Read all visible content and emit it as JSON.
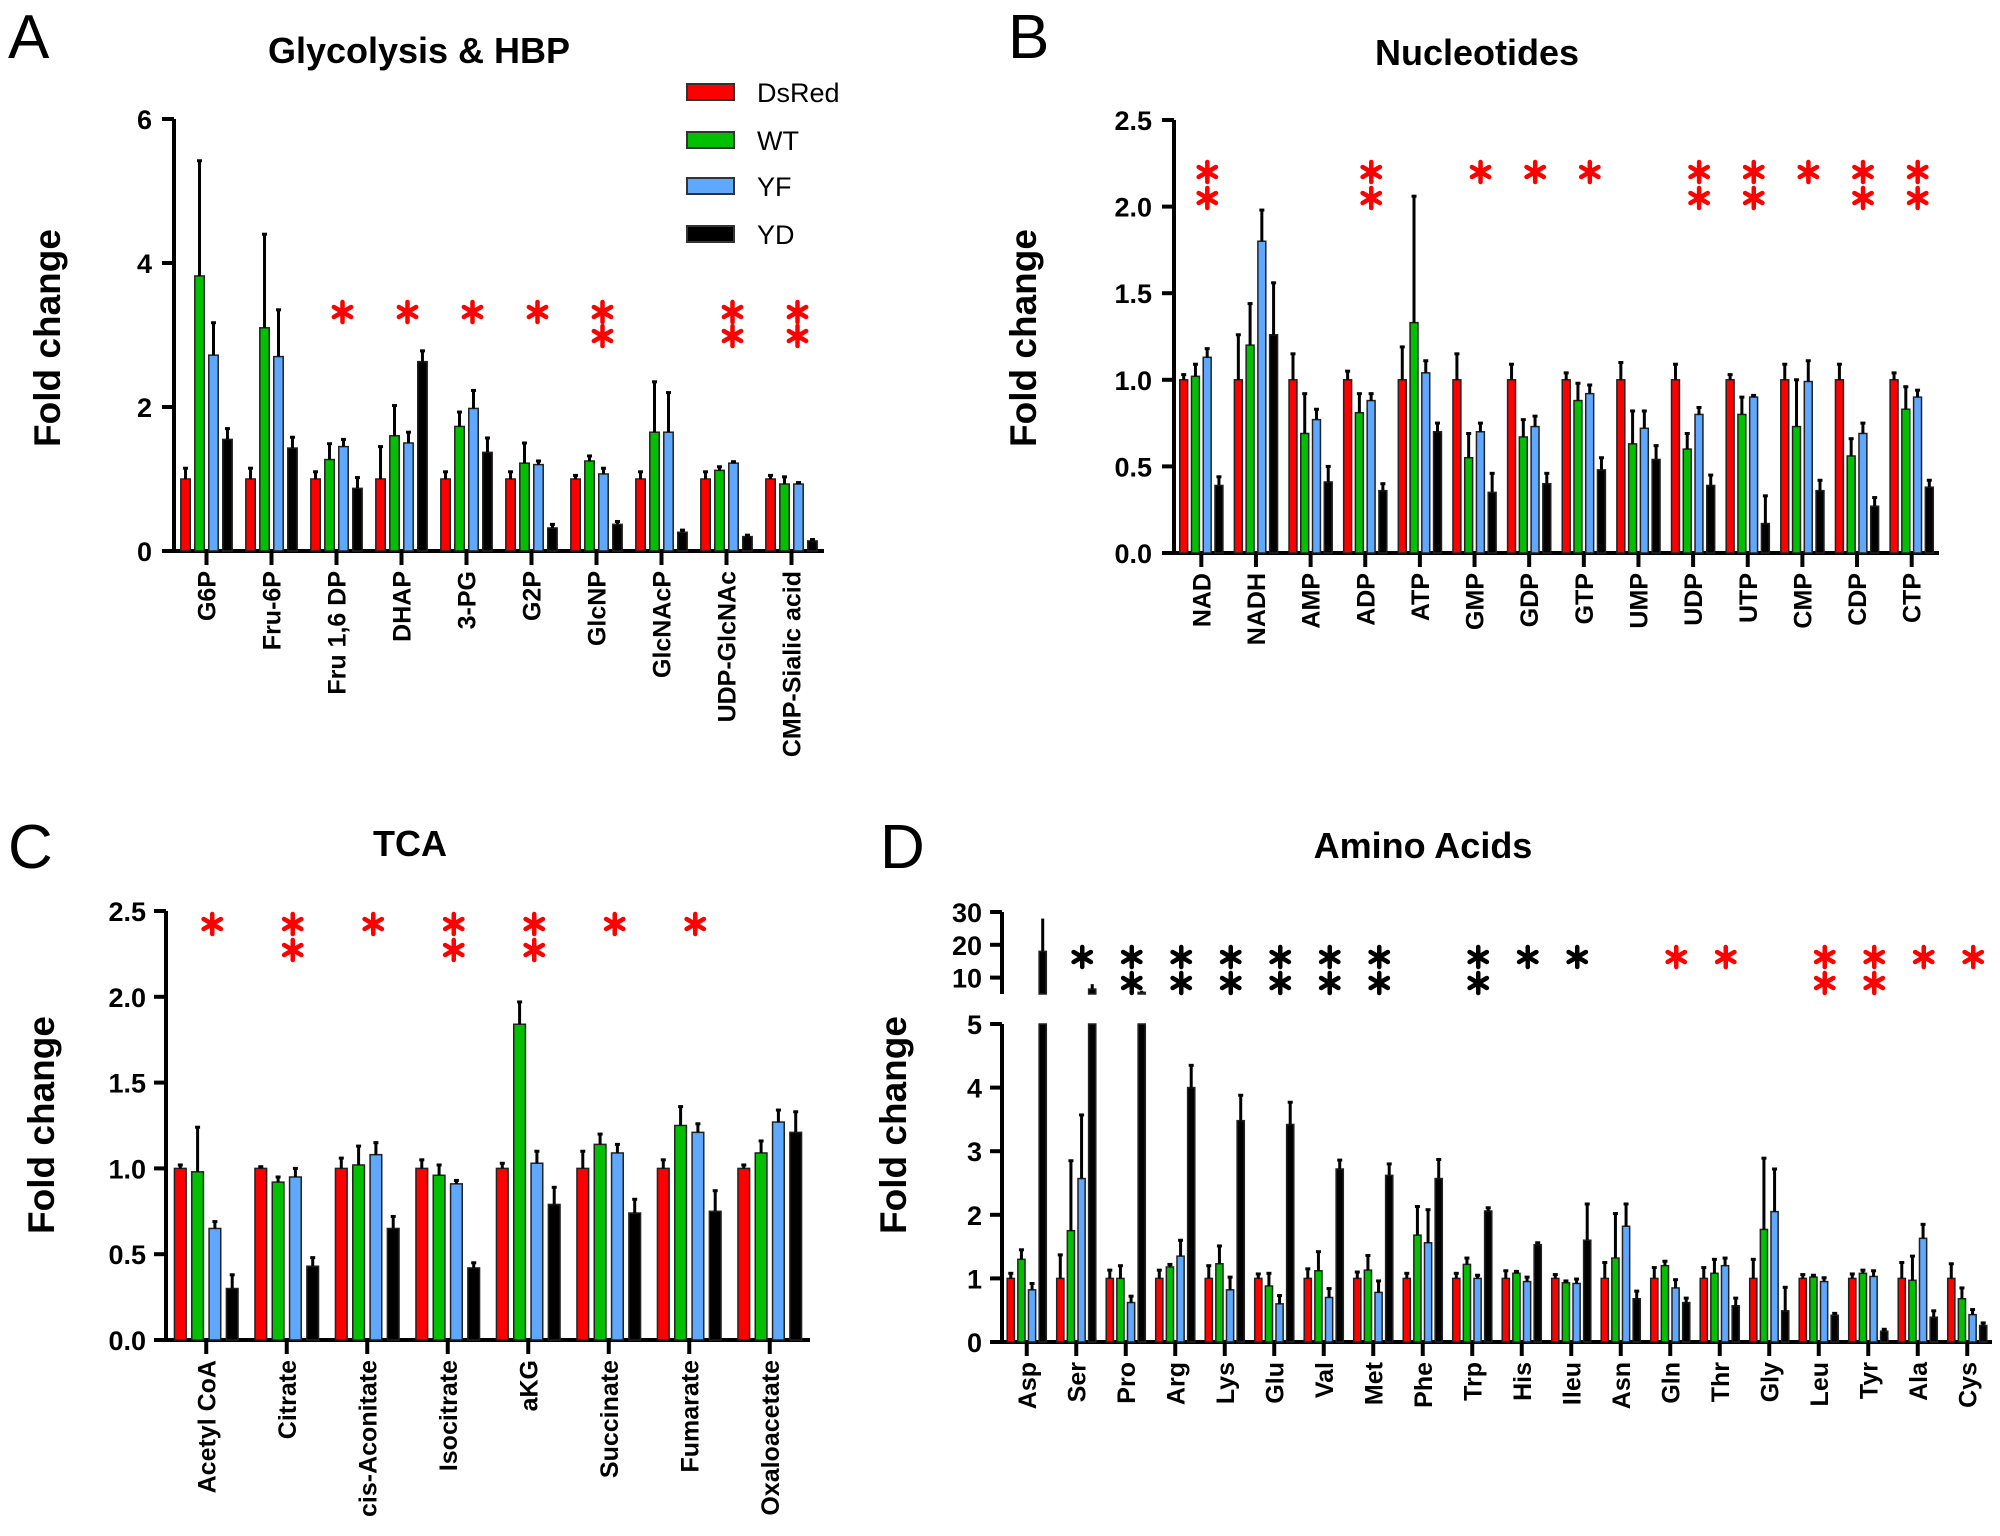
{
  "legend": {
    "series": [
      {
        "name": "DsRed",
        "color": "#ff0000"
      },
      {
        "name": "WT",
        "color": "#00c000"
      },
      {
        "name": "YF",
        "color": "#5fa8ff"
      },
      {
        "name": "YD",
        "color": "#000000"
      }
    ]
  },
  "chart_data": [
    {
      "panel": "A",
      "type": "bar",
      "title": "Glycolysis & HBP",
      "ylabel": "Fold change",
      "ylim": [
        0,
        6
      ],
      "yticks": [
        0,
        2,
        4,
        6
      ],
      "categories": [
        "G6P",
        "Fru-6P",
        "Fru 1,6 DP",
        "DHAP",
        "3-PG",
        "G2P",
        "GlcNP",
        "GlcNAcP",
        "UDP-GlcNAc",
        "CMP-Sialic acid"
      ],
      "series": [
        {
          "name": "DsRed",
          "values": [
            1.0,
            1.0,
            1.0,
            1.0,
            1.0,
            1.0,
            1.0,
            1.0,
            1.0,
            1.0
          ],
          "errors": [
            0.15,
            0.15,
            0.1,
            0.45,
            0.1,
            0.1,
            0.05,
            0.1,
            0.1,
            0.05
          ]
        },
        {
          "name": "WT",
          "values": [
            3.82,
            3.1,
            1.27,
            1.6,
            1.73,
            1.22,
            1.25,
            1.65,
            1.12,
            0.93
          ],
          "errors": [
            1.6,
            1.3,
            0.22,
            0.42,
            0.2,
            0.28,
            0.07,
            0.7,
            0.05,
            0.1
          ]
        },
        {
          "name": "YF",
          "values": [
            2.72,
            2.7,
            1.45,
            1.5,
            1.98,
            1.2,
            1.07,
            1.65,
            1.22,
            0.93
          ],
          "errors": [
            0.45,
            0.65,
            0.1,
            0.15,
            0.25,
            0.05,
            0.08,
            0.55,
            0.02,
            0.02
          ]
        },
        {
          "name": "YD",
          "values": [
            1.55,
            1.43,
            0.87,
            2.63,
            1.37,
            0.32,
            0.37,
            0.26,
            0.2,
            0.14
          ],
          "errors": [
            0.15,
            0.15,
            0.15,
            0.15,
            0.2,
            0.05,
            0.04,
            0.03,
            0.02,
            0.02
          ]
        }
      ],
      "significance": [
        {
          "category": "Fru 1,6 DP",
          "count": 1,
          "color": "#ff0000"
        },
        {
          "category": "DHAP",
          "count": 1,
          "color": "#ff0000"
        },
        {
          "category": "3-PG",
          "count": 1,
          "color": "#ff0000"
        },
        {
          "category": "G2P",
          "count": 1,
          "color": "#ff0000"
        },
        {
          "category": "GlcNP",
          "count": 2,
          "color": "#ff0000"
        },
        {
          "category": "UDP-GlcNAc",
          "count": 2,
          "color": "#ff0000"
        },
        {
          "category": "CMP-Sialic acid",
          "count": 2,
          "color": "#ff0000"
        }
      ],
      "legend_position": "top-right",
      "grid": false
    },
    {
      "panel": "B",
      "type": "bar",
      "title": "Nucleotides",
      "ylabel": "Fold change",
      "ylim": [
        0,
        2.5
      ],
      "yticks": [
        "0.0",
        "0.5",
        "1.0",
        "1.5",
        "2.0",
        "2.5"
      ],
      "categories": [
        "NAD",
        "NADH",
        "AMP",
        "ADP",
        "ATP",
        "GMP",
        "GDP",
        "GTP",
        "UMP",
        "UDP",
        "UTP",
        "CMP",
        "CDP",
        "CTP"
      ],
      "series": [
        {
          "name": "DsRed",
          "values": [
            1.0,
            1.0,
            1.0,
            1.0,
            1.0,
            1.0,
            1.0,
            1.0,
            1.0,
            1.0,
            1.0,
            1.0,
            1.0,
            1.0
          ],
          "errors": [
            0.03,
            0.26,
            0.15,
            0.05,
            0.19,
            0.15,
            0.09,
            0.04,
            0.1,
            0.09,
            0.03,
            0.09,
            0.09,
            0.04
          ]
        },
        {
          "name": "WT",
          "values": [
            1.02,
            1.2,
            0.69,
            0.81,
            1.33,
            0.55,
            0.67,
            0.88,
            0.63,
            0.6,
            0.8,
            0.73,
            0.56,
            0.83
          ],
          "errors": [
            0.07,
            0.24,
            0.23,
            0.11,
            0.73,
            0.14,
            0.1,
            0.1,
            0.19,
            0.09,
            0.1,
            0.27,
            0.1,
            0.13
          ]
        },
        {
          "name": "YF",
          "values": [
            1.13,
            1.8,
            0.77,
            0.88,
            1.04,
            0.7,
            0.73,
            0.92,
            0.72,
            0.8,
            0.9,
            0.99,
            0.69,
            0.9
          ],
          "errors": [
            0.05,
            0.18,
            0.06,
            0.04,
            0.07,
            0.05,
            0.06,
            0.05,
            0.1,
            0.04,
            0.01,
            0.12,
            0.06,
            0.04
          ]
        },
        {
          "name": "YD",
          "values": [
            0.39,
            1.26,
            0.41,
            0.36,
            0.7,
            0.35,
            0.4,
            0.48,
            0.54,
            0.39,
            0.17,
            0.36,
            0.27,
            0.38
          ],
          "errors": [
            0.05,
            0.3,
            0.09,
            0.04,
            0.05,
            0.11,
            0.06,
            0.07,
            0.08,
            0.06,
            0.16,
            0.06,
            0.05,
            0.04
          ]
        }
      ],
      "significance": [
        {
          "category": "NAD",
          "count": 2,
          "color": "#ff0000"
        },
        {
          "category": "ADP",
          "count": 2,
          "color": "#ff0000"
        },
        {
          "category": "GMP",
          "count": 1,
          "color": "#ff0000"
        },
        {
          "category": "GDP",
          "count": 1,
          "color": "#ff0000"
        },
        {
          "category": "GTP",
          "count": 1,
          "color": "#ff0000"
        },
        {
          "category": "UDP",
          "count": 2,
          "color": "#ff0000"
        },
        {
          "category": "UTP",
          "count": 2,
          "color": "#ff0000"
        },
        {
          "category": "CMP",
          "count": 1,
          "color": "#ff0000"
        },
        {
          "category": "CDP",
          "count": 2,
          "color": "#ff0000"
        },
        {
          "category": "CTP",
          "count": 2,
          "color": "#ff0000"
        }
      ],
      "grid": false
    },
    {
      "panel": "C",
      "type": "bar",
      "title": "TCA",
      "ylabel": "Fold change",
      "ylim": [
        0,
        2.5
      ],
      "yticks": [
        "0.0",
        "0.5",
        "1.0",
        "1.5",
        "2.0",
        "2.5"
      ],
      "categories": [
        "Acetyl CoA",
        "Citrate",
        "cis-Aconitate",
        "Isocitrate",
        "aKG",
        "Succinate",
        "Fumarate",
        "Oxaloacetate"
      ],
      "series": [
        {
          "name": "DsRed",
          "values": [
            1.0,
            1.0,
            1.0,
            1.0,
            1.0,
            1.0,
            1.0,
            1.0
          ],
          "errors": [
            0.02,
            0.01,
            0.06,
            0.05,
            0.03,
            0.1,
            0.05,
            0.02
          ]
        },
        {
          "name": "WT",
          "values": [
            0.98,
            0.92,
            1.02,
            0.96,
            1.84,
            1.14,
            1.25,
            1.09
          ],
          "errors": [
            0.26,
            0.03,
            0.11,
            0.06,
            0.13,
            0.06,
            0.11,
            0.07
          ]
        },
        {
          "name": "YF",
          "values": [
            0.65,
            0.95,
            1.08,
            0.91,
            1.03,
            1.09,
            1.21,
            1.27
          ],
          "errors": [
            0.04,
            0.05,
            0.07,
            0.02,
            0.07,
            0.05,
            0.05,
            0.07
          ]
        },
        {
          "name": "YD",
          "values": [
            0.3,
            0.43,
            0.65,
            0.42,
            0.79,
            0.74,
            0.75,
            1.21
          ],
          "errors": [
            0.08,
            0.05,
            0.07,
            0.03,
            0.1,
            0.08,
            0.12,
            0.12
          ]
        }
      ],
      "significance": [
        {
          "category": "Acetyl CoA",
          "count": 1,
          "color": "#ff0000"
        },
        {
          "category": "Citrate",
          "count": 2,
          "color": "#ff0000"
        },
        {
          "category": "cis-Aconitate",
          "count": 1,
          "color": "#ff0000"
        },
        {
          "category": "Isocitrate",
          "count": 2,
          "color": "#ff0000"
        },
        {
          "category": "aKG",
          "count": 2,
          "color": "#ff0000"
        },
        {
          "category": "Succinate",
          "count": 1,
          "color": "#ff0000"
        },
        {
          "category": "Fumarate",
          "count": 1,
          "color": "#ff0000"
        }
      ],
      "grid": false
    },
    {
      "panel": "D",
      "type": "bar",
      "title": "Amino Acids",
      "ylabel": "Fold change",
      "ylim": [
        0,
        30
      ],
      "axis_break": [
        5,
        5
      ],
      "yticks": [
        0,
        1,
        2,
        3,
        4,
        5,
        10,
        20,
        30
      ],
      "categories": [
        "Asp",
        "Ser",
        "Pro",
        "Arg",
        "Lys",
        "Glu",
        "Val",
        "Met",
        "Phe",
        "Trp",
        "His",
        "Ileu",
        "Asn",
        "Gln",
        "Thr",
        "Gly",
        "Leu",
        "Tyr",
        "Ala",
        "Cys"
      ],
      "series": [
        {
          "name": "DsRed",
          "values": [
            1.0,
            1.0,
            1.0,
            1.0,
            1.0,
            1.0,
            1.0,
            1.0,
            1.0,
            1.0,
            1.0,
            1.0,
            1.0,
            1.0,
            1.0,
            1.0,
            1.0,
            1.0,
            1.0,
            1.0
          ],
          "errors": [
            0.08,
            0.37,
            0.13,
            0.13,
            0.2,
            0.07,
            0.15,
            0.1,
            0.08,
            0.08,
            0.12,
            0.06,
            0.25,
            0.17,
            0.17,
            0.3,
            0.06,
            0.07,
            0.25,
            0.23
          ]
        },
        {
          "name": "WT",
          "values": [
            1.3,
            1.75,
            1.0,
            1.18,
            1.23,
            0.88,
            1.12,
            1.13,
            1.68,
            1.22,
            1.08,
            0.93,
            1.32,
            1.2,
            1.08,
            1.77,
            1.02,
            1.08,
            0.97,
            0.68
          ],
          "errors": [
            0.15,
            1.1,
            0.2,
            0.04,
            0.28,
            0.2,
            0.3,
            0.23,
            0.45,
            0.1,
            0.03,
            0.03,
            0.7,
            0.07,
            0.22,
            1.12,
            0.03,
            0.05,
            0.38,
            0.17
          ]
        },
        {
          "name": "YF",
          "values": [
            0.82,
            2.57,
            0.62,
            1.35,
            0.82,
            0.6,
            0.7,
            0.78,
            1.56,
            1.0,
            0.95,
            0.92,
            1.82,
            0.85,
            1.2,
            2.05,
            0.95,
            1.03,
            1.63,
            0.43
          ],
          "errors": [
            0.1,
            1.0,
            0.1,
            0.25,
            0.2,
            0.13,
            0.14,
            0.18,
            0.52,
            0.05,
            0.07,
            0.07,
            0.35,
            0.13,
            0.12,
            0.67,
            0.06,
            0.09,
            0.22,
            0.08
          ]
        },
        {
          "name": "YD",
          "values": [
            18,
            6.5,
            5.5,
            4.0,
            3.48,
            3.42,
            2.72,
            2.62,
            2.57,
            2.06,
            1.53,
            1.6,
            0.68,
            0.62,
            0.57,
            0.49,
            0.42,
            0.17,
            0.39,
            0.26
          ],
          "errors": [
            10,
            1.5,
            0.5,
            0.35,
            0.4,
            0.35,
            0.14,
            0.18,
            0.3,
            0.05,
            0.03,
            0.57,
            0.12,
            0.07,
            0.12,
            0.37,
            0.03,
            0.03,
            0.1,
            0.04
          ]
        }
      ],
      "significance": [
        {
          "category": "Ser",
          "count": 1,
          "color": "#000000"
        },
        {
          "category": "Pro",
          "count": 2,
          "color": "#000000"
        },
        {
          "category": "Arg",
          "count": 2,
          "color": "#000000"
        },
        {
          "category": "Lys",
          "count": 2,
          "color": "#000000"
        },
        {
          "category": "Glu",
          "count": 2,
          "color": "#000000"
        },
        {
          "category": "Val",
          "count": 2,
          "color": "#000000"
        },
        {
          "category": "Met",
          "count": 2,
          "color": "#000000"
        },
        {
          "category": "Trp",
          "count": 2,
          "color": "#000000"
        },
        {
          "category": "His",
          "count": 1,
          "color": "#000000"
        },
        {
          "category": "Ileu",
          "count": 1,
          "color": "#000000"
        },
        {
          "category": "Gln",
          "count": 1,
          "color": "#ff0000"
        },
        {
          "category": "Thr",
          "count": 1,
          "color": "#ff0000"
        },
        {
          "category": "Leu",
          "count": 2,
          "color": "#ff0000"
        },
        {
          "category": "Tyr",
          "count": 2,
          "color": "#ff0000"
        },
        {
          "category": "Ala",
          "count": 1,
          "color": "#ff0000"
        },
        {
          "category": "Cys",
          "count": 1,
          "color": "#ff0000"
        }
      ],
      "grid": false
    }
  ]
}
